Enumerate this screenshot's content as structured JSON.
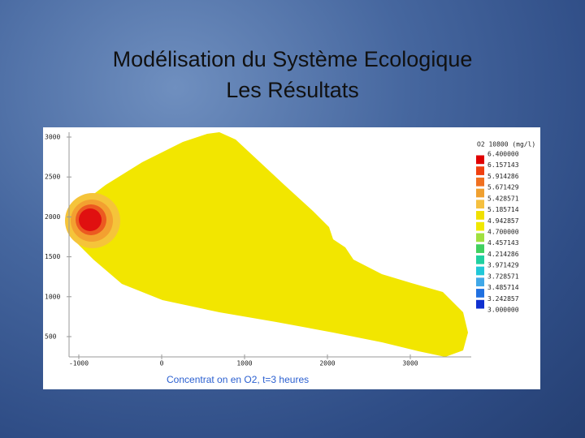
{
  "title": {
    "lines": [
      "Modélisation du Système Ecologique",
      "Les Résultats"
    ]
  },
  "figure": {
    "yticks": [
      3000,
      2500,
      2000,
      1500,
      1000,
      500
    ],
    "xticks": [
      -1000,
      0,
      1000,
      2000,
      3000
    ],
    "legend": {
      "title": "O2 10800 (mg/l)",
      "levels": [
        "6.400000",
        "6.157143",
        "5.914286",
        "5.671429",
        "5.428571",
        "5.185714",
        "4.942857",
        "4.700000",
        "4.457143",
        "4.214286",
        "3.971429",
        "3.728571",
        "3.485714",
        "3.242857",
        "3.000000"
      ]
    },
    "caption": "Concentrat on en O2, t=3 heures"
  }
}
